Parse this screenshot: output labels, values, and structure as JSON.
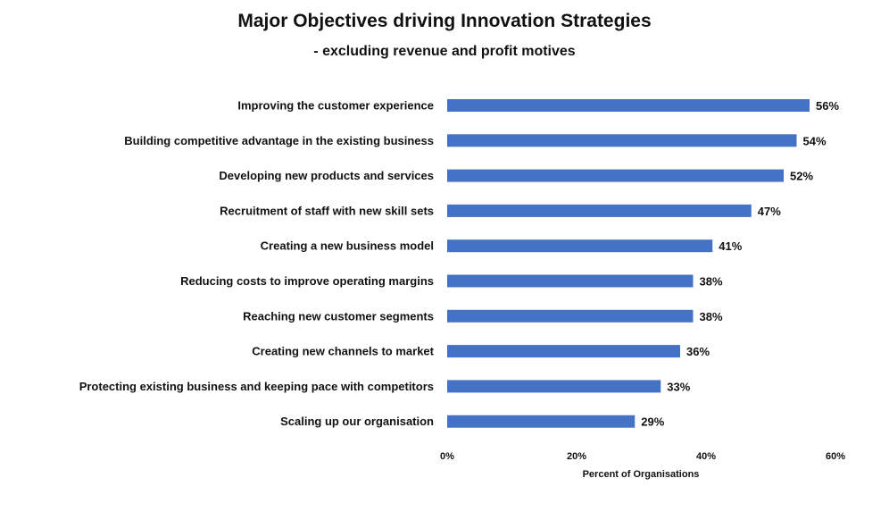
{
  "chart_data": {
    "type": "bar",
    "orientation": "horizontal",
    "title": "Major Objectives driving Innovation Strategies",
    "subtitle": "- excluding revenue and profit motives",
    "xlabel": "Percent of Organisations",
    "ylabel": "",
    "categories": [
      "Improving the customer experience",
      "Building competitive advantage in the existing business",
      "Developing new products and services",
      "Recruitment of staff with new skill sets",
      "Creating a new business model",
      "Reducing costs to improve operating margins",
      "Reaching new customer segments",
      "Creating new channels to market",
      "Protecting existing business and keeping pace with competitors",
      "Scaling up our organisation"
    ],
    "values": [
      56,
      54,
      52,
      47,
      41,
      38,
      38,
      36,
      33,
      29
    ],
    "data_labels": [
      "56%",
      "54%",
      "52%",
      "47%",
      "41%",
      "38%",
      "38%",
      "36%",
      "33%",
      "29%"
    ],
    "xlim": [
      0,
      60
    ],
    "x_ticks": [
      0,
      20,
      40,
      60
    ],
    "x_tick_labels": [
      "0%",
      "20%",
      "40%",
      "60%"
    ],
    "grid": false,
    "legend": "none",
    "bar_color": "#4472C4"
  }
}
